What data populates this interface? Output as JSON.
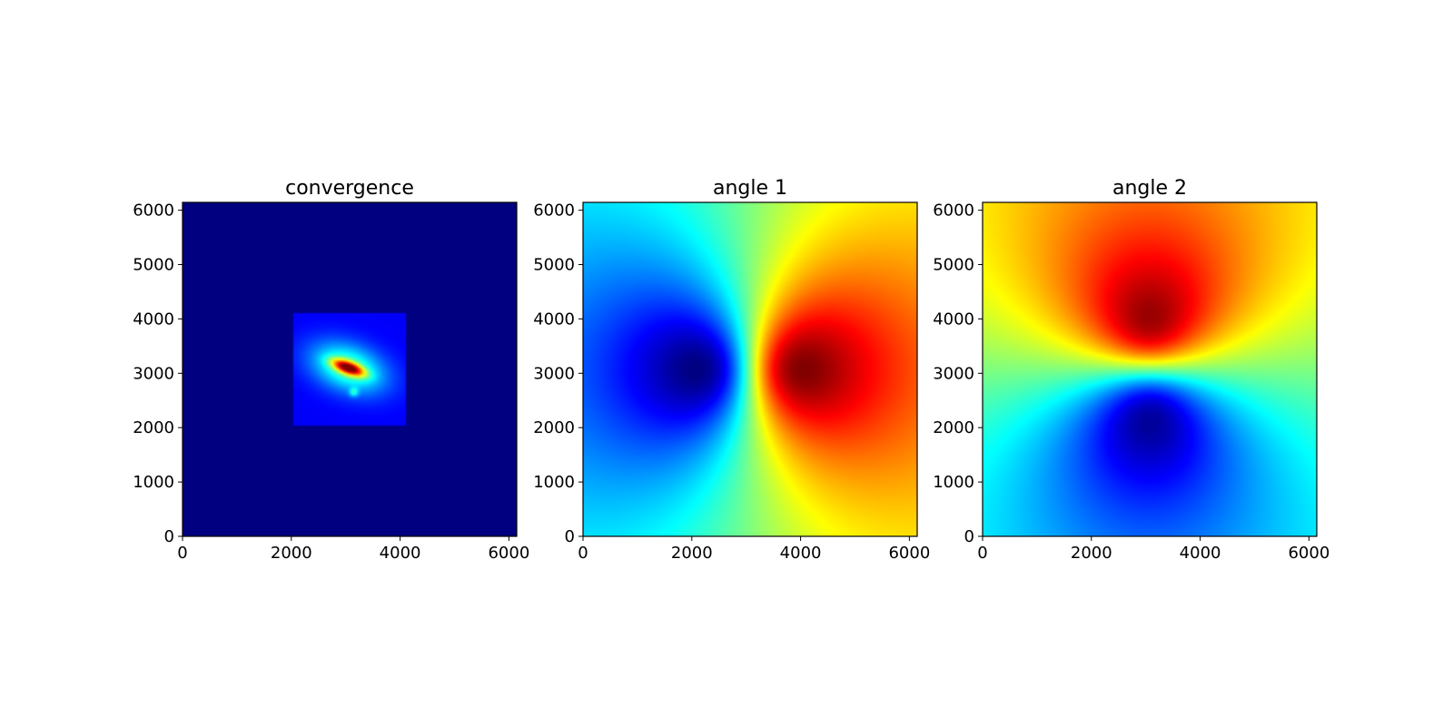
{
  "chart_data": [
    {
      "type": "heatmap",
      "title": "convergence",
      "colormap": "jet",
      "xlim": [
        0,
        6144
      ],
      "ylim": [
        0,
        6144
      ],
      "xticks": [
        0,
        2000,
        4000,
        6000
      ],
      "yticks": [
        0,
        1000,
        2000,
        3000,
        4000,
        5000,
        6000
      ],
      "xlabel": "",
      "ylabel": "",
      "field": {
        "background_level": 0.0,
        "inner_region": {
          "x_range": [
            2048,
            4096
          ],
          "y_range": [
            2048,
            4096
          ],
          "base_level": 0.12
        },
        "peak": {
          "x": 3050,
          "y": 3100,
          "level": 1.0,
          "orientation_deg": -20
        }
      }
    },
    {
      "type": "heatmap",
      "title": "angle 1",
      "colormap": "jet",
      "xlim": [
        0,
        6144
      ],
      "ylim": [
        0,
        6144
      ],
      "xticks": [
        0,
        2000,
        4000,
        6000
      ],
      "yticks": [
        0,
        1000,
        2000,
        3000,
        4000,
        5000,
        6000
      ],
      "xlabel": "",
      "ylabel": "",
      "field": {
        "component": "x",
        "center": [
          3072,
          3072
        ],
        "min_at": [
          2050,
          3100
        ],
        "max_at": [
          4100,
          3050
        ]
      }
    },
    {
      "type": "heatmap",
      "title": "angle 2",
      "colormap": "jet",
      "xlim": [
        0,
        6144
      ],
      "ylim": [
        0,
        6144
      ],
      "xticks": [
        0,
        2000,
        4000,
        6000
      ],
      "yticks": [
        0,
        1000,
        2000,
        3000,
        4000,
        5000,
        6000
      ],
      "xlabel": "",
      "ylabel": "",
      "field": {
        "component": "y",
        "center": [
          3072,
          3072
        ],
        "min_at": [
          3100,
          2100
        ],
        "max_at": [
          3050,
          4000
        ]
      }
    }
  ]
}
